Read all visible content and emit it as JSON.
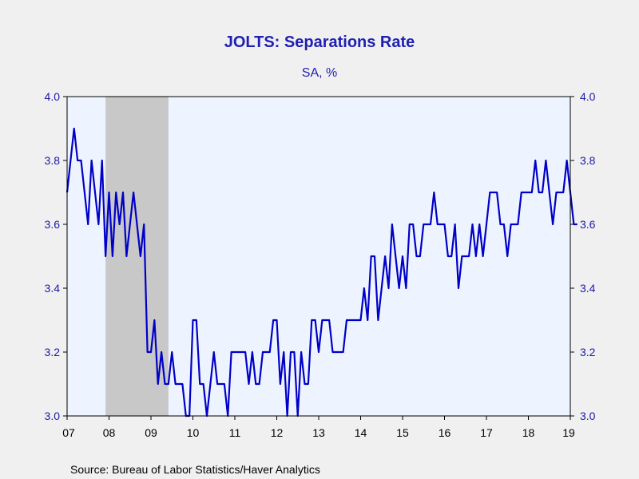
{
  "chart_data": {
    "type": "line",
    "title": "JOLTS: Separations Rate",
    "subtitle": "SA, %",
    "source": "Source:  Bureau of Labor Statistics/Haver Analytics",
    "xlabel": "",
    "ylabel": "",
    "ylim": [
      3.0,
      4.0
    ],
    "yticks": [
      "3.0",
      "3.2",
      "3.4",
      "3.6",
      "3.8",
      "4.0"
    ],
    "xlim": [
      2007.0,
      2019.0
    ],
    "xtick_labels": [
      "07",
      "08",
      "09",
      "10",
      "11",
      "12",
      "13",
      "14",
      "15",
      "16",
      "17",
      "18",
      "19"
    ],
    "recession_shading": {
      "start": 2007.917,
      "end": 2009.417
    },
    "grid": false,
    "legend": "none",
    "colors": {
      "line": "#0000c8",
      "plot_bg": "#eef4ff",
      "recession": "#c8c8c8",
      "page_bg": "#f0f0f0",
      "text": "#1f1fb4"
    },
    "series": [
      {
        "start": "2007-01",
        "frequency": "monthly",
        "values": [
          3.7,
          3.8,
          3.9,
          3.8,
          3.8,
          3.7,
          3.6,
          3.8,
          3.7,
          3.6,
          3.8,
          3.5,
          3.7,
          3.5,
          3.7,
          3.6,
          3.7,
          3.5,
          3.6,
          3.7,
          3.6,
          3.5,
          3.6,
          3.2,
          3.2,
          3.3,
          3.1,
          3.2,
          3.1,
          3.1,
          3.2,
          3.1,
          3.1,
          3.1,
          3.0,
          3.0,
          3.3,
          3.3,
          3.1,
          3.1,
          3.0,
          3.1,
          3.2,
          3.1,
          3.1,
          3.1,
          3.0,
          3.2,
          3.2,
          3.2,
          3.2,
          3.2,
          3.1,
          3.2,
          3.1,
          3.1,
          3.2,
          3.2,
          3.2,
          3.3,
          3.3,
          3.1,
          3.2,
          3.0,
          3.2,
          3.2,
          3.0,
          3.2,
          3.1,
          3.1,
          3.3,
          3.3,
          3.2,
          3.3,
          3.3,
          3.3,
          3.2,
          3.2,
          3.2,
          3.2,
          3.3,
          3.3,
          3.3,
          3.3,
          3.3,
          3.4,
          3.3,
          3.5,
          3.5,
          3.3,
          3.4,
          3.5,
          3.4,
          3.6,
          3.5,
          3.4,
          3.5,
          3.4,
          3.6,
          3.6,
          3.5,
          3.5,
          3.6,
          3.6,
          3.6,
          3.7,
          3.6,
          3.6,
          3.6,
          3.5,
          3.5,
          3.6,
          3.4,
          3.5,
          3.5,
          3.5,
          3.6,
          3.5,
          3.6,
          3.5,
          3.6,
          3.7,
          3.7,
          3.7,
          3.6,
          3.6,
          3.5,
          3.6,
          3.6,
          3.6,
          3.7,
          3.7,
          3.7,
          3.7,
          3.8,
          3.7,
          3.7,
          3.8,
          3.7,
          3.6,
          3.7,
          3.7,
          3.7,
          3.8,
          3.7,
          3.6,
          3.6
        ]
      }
    ]
  }
}
